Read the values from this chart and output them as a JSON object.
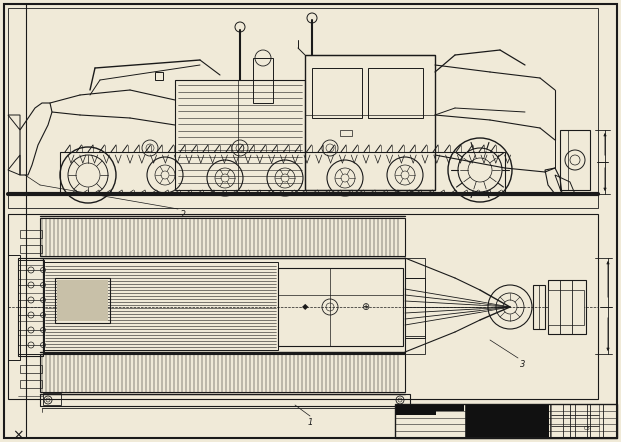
{
  "bg_color": "#f0ead8",
  "line_color": "#1a1a1a",
  "label_2": "2",
  "label_1": "1",
  "label_3": "3",
  "fig_w": 6.21,
  "fig_h": 4.42,
  "dpi": 100
}
